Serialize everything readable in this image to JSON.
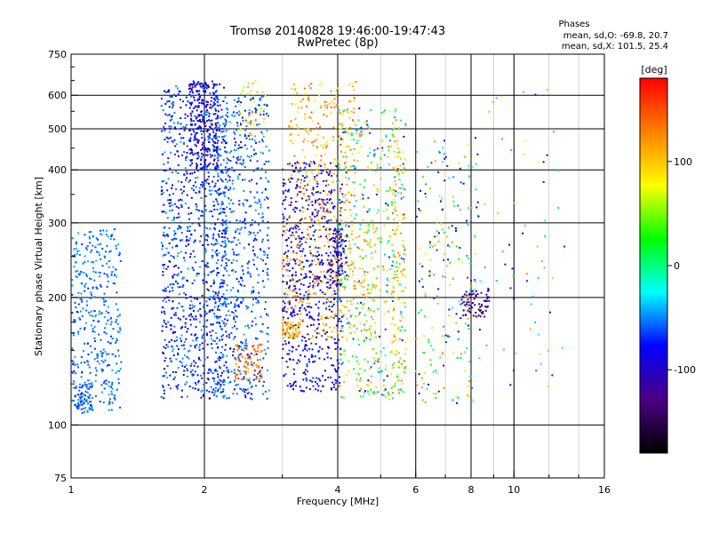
{
  "chart_data": {
    "type": "scatter",
    "title": "Tromsø 20140828 19:46:00-19:47:43",
    "subtitle": "RwPretec (8p)",
    "xlabel": "Frequency [MHz]",
    "ylabel": "Stationary phase Virtual Height [km]",
    "x_scale": "log",
    "y_scale": "log",
    "xlim": [
      1,
      16
    ],
    "ylim": [
      75,
      750
    ],
    "x_ticks": [
      1,
      2,
      4,
      6,
      8,
      10,
      16
    ],
    "x_tick_labels": [
      "1",
      "2",
      "4",
      "6",
      "8",
      "10",
      "16"
    ],
    "y_ticks": [
      75,
      100,
      200,
      300,
      400,
      500,
      600,
      750
    ],
    "y_tick_labels": [
      "75",
      "100",
      "200",
      "300",
      "400",
      "500",
      "600",
      "750"
    ],
    "grid": true,
    "stats": {
      "heading": "Phases",
      "line_o": "mean, sd,O: -69.8, 20.7",
      "line_x": "mean, sd,X: 101.5, 25.4"
    },
    "colorbar": {
      "label": "[deg]",
      "range": [
        -180,
        180
      ],
      "ticks": [
        100,
        0,
        -100
      ],
      "tick_labels": [
        "100",
        "0",
        "-100"
      ],
      "colors": [
        "#000000",
        "#4b0082",
        "#0000ff",
        "#00ffff",
        "#00ff00",
        "#ffff00",
        "#ff8000",
        "#ff0000"
      ]
    },
    "clusters": [
      {
        "f": [
          1.0,
          1.3
        ],
        "h": [
          108,
          290
        ],
        "phase": [
          -70,
          -40
        ],
        "n": 380
      },
      {
        "f": [
          1.02,
          1.12
        ],
        "h": [
          106,
          125
        ],
        "phase": [
          -70,
          -45
        ],
        "n": 60
      },
      {
        "f": [
          1.6,
          2.25
        ],
        "h": [
          115,
          640
        ],
        "phase": [
          -100,
          -40
        ],
        "n": 950
      },
      {
        "f": [
          1.85,
          2.15
        ],
        "h": [
          400,
          650
        ],
        "phase": [
          -120,
          -60
        ],
        "n": 260
      },
      {
        "f": [
          2.1,
          2.8
        ],
        "h": [
          115,
          600
        ],
        "phase": [
          -80,
          -40
        ],
        "n": 650
      },
      {
        "f": [
          2.35,
          2.7
        ],
        "h": [
          128,
          155
        ],
        "phase": [
          100,
          170
        ],
        "n": 70
      },
      {
        "f": [
          2.4,
          2.75
        ],
        "h": [
          480,
          650
        ],
        "phase": [
          60,
          130
        ],
        "n": 40
      },
      {
        "f": [
          3.0,
          4.1
        ],
        "h": [
          120,
          420
        ],
        "phase": [
          -120,
          -60
        ],
        "n": 650
      },
      {
        "f": [
          3.1,
          4.4
        ],
        "h": [
          300,
          650
        ],
        "phase": [
          80,
          150
        ],
        "n": 240
      },
      {
        "f": [
          3.0,
          3.3
        ],
        "h": [
          160,
          175
        ],
        "phase": [
          100,
          120
        ],
        "n": 60
      },
      {
        "f": [
          3.0,
          4.9
        ],
        "h": [
          160,
          300
        ],
        "phase": [
          90,
          130
        ],
        "n": 280
      },
      {
        "f": [
          3.8,
          4.2
        ],
        "h": [
          210,
          290
        ],
        "phase": [
          -130,
          -90
        ],
        "n": 90
      },
      {
        "f": [
          4.0,
          5.7
        ],
        "h": [
          115,
          560
        ],
        "phase": [
          -80,
          130
        ],
        "n": 520
      },
      {
        "f": [
          5.3,
          5.7
        ],
        "h": [
          120,
          480
        ],
        "phase": [
          80,
          130
        ],
        "n": 90
      },
      {
        "f": [
          6.0,
          8.4
        ],
        "h": [
          110,
          480
        ],
        "phase": [
          -140,
          130
        ],
        "n": 220
      },
      {
        "f": [
          7.6,
          8.8
        ],
        "h": [
          180,
          210
        ],
        "phase": [
          -140,
          -110
        ],
        "n": 70
      },
      {
        "f": [
          8.5,
          13.0
        ],
        "h": [
          120,
          650
        ],
        "phase": [
          -140,
          130
        ],
        "n": 60
      }
    ]
  }
}
